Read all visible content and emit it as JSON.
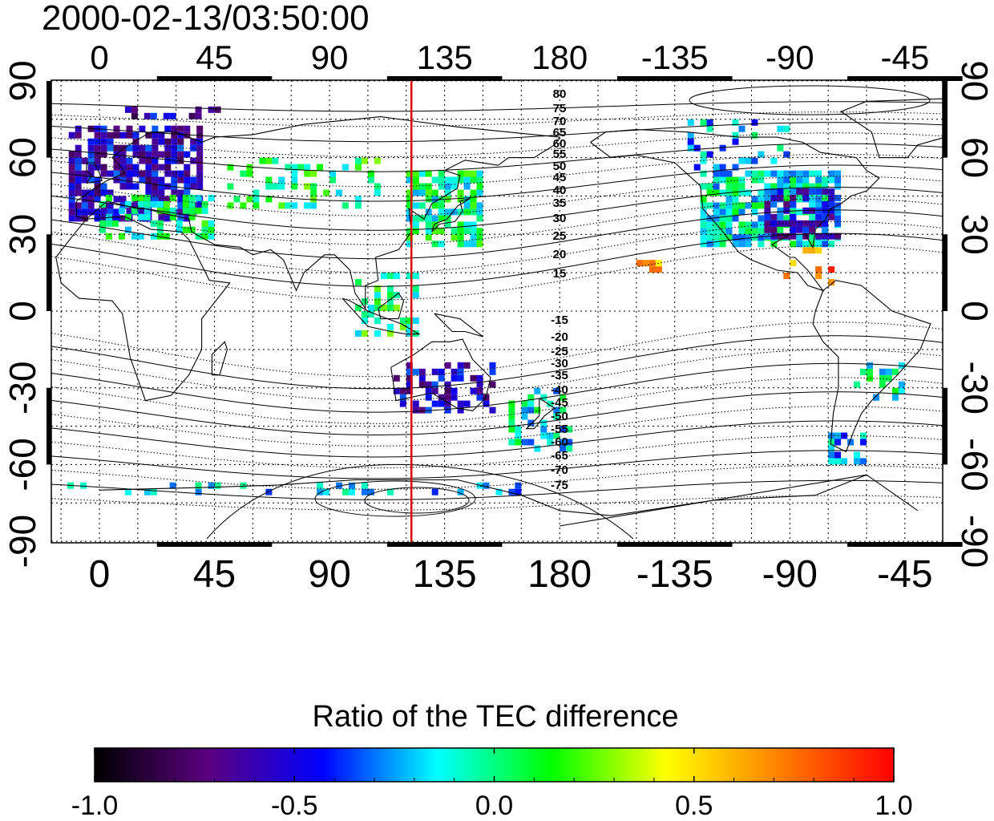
{
  "title": "2000-02-13/03:50:00",
  "map": {
    "lon_tick_labels": [
      "0",
      "45",
      "90",
      "135",
      "180",
      "-135",
      "-90",
      "-45"
    ],
    "lat_tick_labels": [
      "90",
      "60",
      "30",
      "0",
      "-30",
      "-60",
      "-90"
    ],
    "contour_labels_north": [
      "80",
      "75",
      "70",
      "65",
      "60",
      "55",
      "50",
      "45",
      "40",
      "35",
      "30",
      "25",
      "20",
      "15"
    ],
    "contour_labels_south": [
      "-15",
      "-20",
      "-25",
      "-30",
      "-35",
      "-40",
      "-45",
      "-50",
      "-55",
      "-60",
      "-65",
      "-70",
      "-75"
    ],
    "marker_line_lon": 122,
    "marker_line_color": "#dd0000"
  },
  "colorbar": {
    "title": "Ratio of the TEC difference",
    "tick_labels": [
      "-1.0",
      "-0.5",
      "0.0",
      "0.5",
      "1.0"
    ],
    "range": [
      -1.0,
      1.0
    ],
    "colors": [
      "#000000",
      "#5a0080",
      "#0000ff",
      "#00ffff",
      "#00ff00",
      "#ffff00",
      "#ff8000",
      "#ff0000"
    ]
  }
}
